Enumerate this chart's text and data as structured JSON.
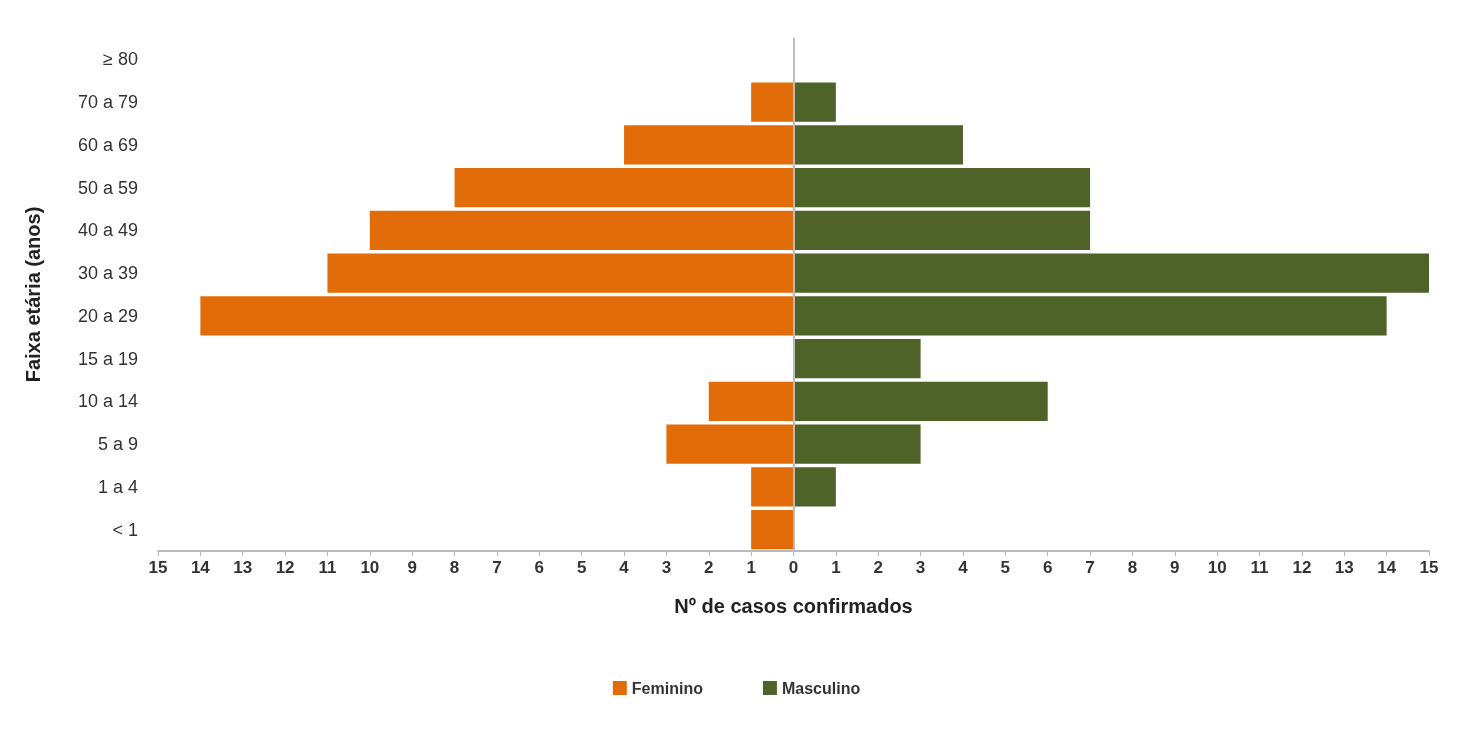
{
  "chart_data": {
    "type": "bar",
    "orientation": "horizontal",
    "stacked": true,
    "xlabel": "Nº de casos confirmados",
    "ylabel": "Faixa etária (anos)",
    "categories": [
      "≥ 80",
      "70 a 79",
      "60 a 69",
      "50 a 59",
      "40 a 49",
      "30 a 39",
      "20 a 29",
      "15 a 19",
      "10 a 14",
      "5 a 9",
      "1 a 4",
      "< 1"
    ],
    "series": [
      {
        "name": "Feminino",
        "color": "#e36c0a",
        "values": [
          0,
          -1,
          -4,
          -8,
          -10,
          -11,
          -14,
          0,
          -2,
          -3,
          -1,
          -1
        ]
      },
      {
        "name": "Masculino",
        "color": "#4f6228",
        "values": [
          0,
          1,
          4,
          7,
          7,
          15,
          14,
          3,
          6,
          3,
          1,
          0
        ]
      }
    ],
    "xlim": [
      -15,
      15
    ],
    "xticks": [
      {
        "value": -15,
        "label": "15"
      },
      {
        "value": -14,
        "label": "14"
      },
      {
        "value": -13,
        "label": "13"
      },
      {
        "value": -12,
        "label": "12"
      },
      {
        "value": -11,
        "label": "11"
      },
      {
        "value": -10,
        "label": "10"
      },
      {
        "value": -9,
        "label": "9"
      },
      {
        "value": -8,
        "label": "8"
      },
      {
        "value": -7,
        "label": "7"
      },
      {
        "value": -6,
        "label": "6"
      },
      {
        "value": -5,
        "label": "5"
      },
      {
        "value": -4,
        "label": "4"
      },
      {
        "value": -3,
        "label": "3"
      },
      {
        "value": -2,
        "label": "2"
      },
      {
        "value": -1,
        "label": "1"
      },
      0,
      1,
      2,
      3,
      4,
      5,
      6,
      7,
      8,
      9,
      10,
      11,
      12,
      13,
      14,
      15
    ],
    "ref_lines": [
      {
        "axis": "x",
        "value": 0,
        "color": "#bbbbbb"
      }
    ],
    "grid": false,
    "legend": "bottom"
  }
}
